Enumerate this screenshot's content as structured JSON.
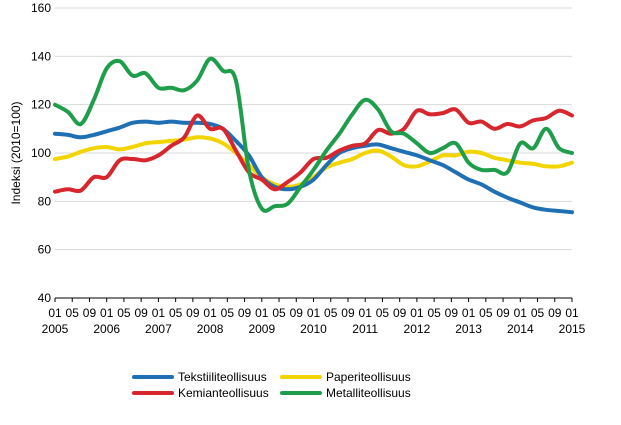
{
  "chart_data": {
    "type": "line",
    "title": "",
    "xlabel": "",
    "ylabel": "Indeksi (2010=100)",
    "ylim": [
      40,
      160
    ],
    "y_ticks": [
      40,
      60,
      80,
      100,
      120,
      140,
      160
    ],
    "grid": "horizontal",
    "legend_position": "bottom",
    "x_start": "2005-01",
    "x_end": "2015-01",
    "month_ticks": [
      "01",
      "05",
      "09",
      "01",
      "05",
      "09",
      "01",
      "05",
      "09",
      "01",
      "05",
      "09",
      "01",
      "05",
      "09",
      "01",
      "05",
      "09",
      "01",
      "05",
      "09",
      "01",
      "05",
      "09",
      "01",
      "05",
      "09",
      "01",
      "05",
      "09",
      "01"
    ],
    "year_labels": [
      "2005",
      "2006",
      "2007",
      "2008",
      "2009",
      "2010",
      "2011",
      "2012",
      "2013",
      "2014",
      "2015"
    ],
    "series": [
      {
        "name": "Tekstiiliteollisuus",
        "color": "#1f6fb5",
        "x": [
          "2005-01",
          "2005-04",
          "2005-07",
          "2005-10",
          "2006-01",
          "2006-04",
          "2006-07",
          "2006-10",
          "2007-01",
          "2007-04",
          "2007-07",
          "2007-10",
          "2008-01",
          "2008-04",
          "2008-07",
          "2008-10",
          "2009-01",
          "2009-04",
          "2009-07",
          "2009-10",
          "2010-01",
          "2010-04",
          "2010-07",
          "2010-10",
          "2011-01",
          "2011-04",
          "2011-07",
          "2011-10",
          "2012-01",
          "2012-04",
          "2012-07",
          "2012-10",
          "2013-01",
          "2013-04",
          "2013-07",
          "2013-10",
          "2014-01",
          "2014-04",
          "2014-07",
          "2014-10",
          "2015-01"
        ],
        "y": [
          108,
          107.5,
          106.5,
          107.5,
          109,
          110.5,
          112.5,
          113,
          112.5,
          113,
          112.5,
          112.5,
          112,
          110,
          105,
          99,
          90,
          86,
          85,
          86,
          89,
          95,
          100,
          102,
          103,
          103.5,
          102,
          100.5,
          99,
          97,
          95,
          92,
          89,
          87,
          84,
          81.5,
          79.5,
          77.5,
          76.5,
          76,
          75.5
        ]
      },
      {
        "name": "Kemianteollisuus",
        "color": "#d7262d",
        "x": [
          "2005-01",
          "2005-04",
          "2005-07",
          "2005-10",
          "2006-01",
          "2006-04",
          "2006-07",
          "2006-10",
          "2007-01",
          "2007-04",
          "2007-07",
          "2007-10",
          "2008-01",
          "2008-04",
          "2008-07",
          "2008-10",
          "2009-01",
          "2009-04",
          "2009-07",
          "2009-10",
          "2010-01",
          "2010-04",
          "2010-07",
          "2010-10",
          "2011-01",
          "2011-04",
          "2011-07",
          "2011-10",
          "2012-01",
          "2012-04",
          "2012-07",
          "2012-10",
          "2013-01",
          "2013-04",
          "2013-07",
          "2013-10",
          "2014-01",
          "2014-04",
          "2014-07",
          "2014-10",
          "2015-01"
        ],
        "y": [
          84,
          85,
          84.5,
          90,
          90,
          97,
          97.5,
          97,
          99,
          103,
          106.5,
          115.5,
          110,
          110,
          101,
          92,
          89,
          85,
          88,
          92,
          97.5,
          98,
          101,
          103,
          104,
          109.5,
          108,
          110,
          117.5,
          116,
          116.5,
          118,
          112.5,
          113,
          110,
          112,
          111,
          113.5,
          114.5,
          117.5,
          115.5
        ]
      },
      {
        "name": "Paperiteollisuus",
        "color": "#f2d400",
        "x": [
          "2005-01",
          "2005-04",
          "2005-07",
          "2005-10",
          "2006-01",
          "2006-04",
          "2006-07",
          "2006-10",
          "2007-01",
          "2007-04",
          "2007-07",
          "2007-10",
          "2008-01",
          "2008-04",
          "2008-07",
          "2008-10",
          "2009-01",
          "2009-04",
          "2009-07",
          "2009-10",
          "2010-01",
          "2010-04",
          "2010-07",
          "2010-10",
          "2011-01",
          "2011-04",
          "2011-07",
          "2011-10",
          "2012-01",
          "2012-04",
          "2012-07",
          "2012-10",
          "2013-01",
          "2013-04",
          "2013-07",
          "2013-10",
          "2014-01",
          "2014-04",
          "2014-07",
          "2014-10",
          "2015-01"
        ],
        "y": [
          97.5,
          98.5,
          100.5,
          102,
          102.5,
          101.5,
          102.5,
          104,
          104.5,
          105,
          105.5,
          106.5,
          106,
          104,
          100,
          95,
          90,
          87,
          86,
          87,
          90,
          94,
          96,
          97.5,
          100,
          101,
          98.5,
          95,
          94.5,
          96.5,
          99,
          99,
          100.5,
          100,
          98,
          97,
          96,
          95.5,
          94.5,
          94.5,
          96
        ]
      },
      {
        "name": "Metalliteollisuus",
        "color": "#1e9e4b",
        "x": [
          "2005-01",
          "2005-04",
          "2005-07",
          "2005-10",
          "2006-01",
          "2006-04",
          "2006-07",
          "2006-10",
          "2007-01",
          "2007-04",
          "2007-07",
          "2007-10",
          "2008-01",
          "2008-04",
          "2008-07",
          "2008-10",
          "2009-01",
          "2009-04",
          "2009-07",
          "2009-10",
          "2010-01",
          "2010-04",
          "2010-07",
          "2010-10",
          "2011-01",
          "2011-04",
          "2011-07",
          "2011-10",
          "2012-01",
          "2012-04",
          "2012-07",
          "2012-10",
          "2013-01",
          "2013-04",
          "2013-07",
          "2013-10",
          "2014-01",
          "2014-04",
          "2014-07",
          "2014-10",
          "2015-01"
        ],
        "y": [
          120,
          117,
          112,
          122,
          135,
          138,
          132,
          133,
          127,
          127,
          126,
          130,
          139,
          134,
          130,
          93,
          77,
          78,
          79,
          86,
          93,
          101,
          108,
          116,
          122,
          118,
          109,
          108,
          104,
          100,
          102,
          104,
          96,
          93,
          93,
          92,
          104,
          102,
          110,
          102,
          100
        ]
      }
    ]
  }
}
